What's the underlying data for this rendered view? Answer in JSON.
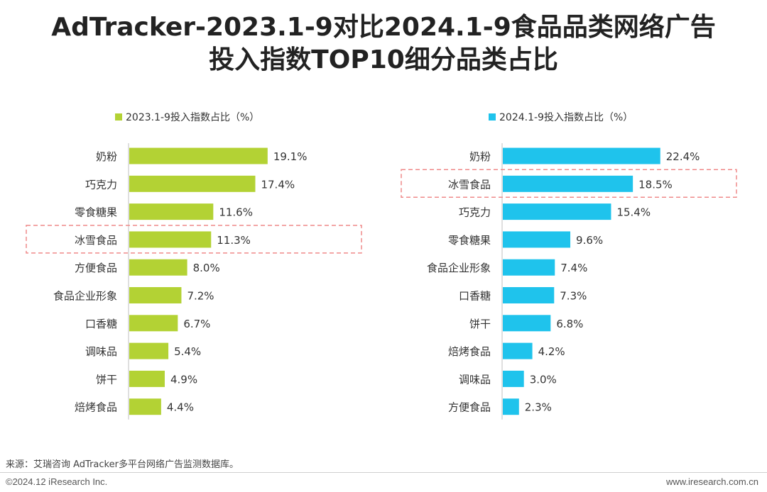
{
  "title": {
    "line1": "AdTracker-2023.1-9对比2024.1-9食品品类网络广告",
    "line2": "投入指数TOP10细分品类占比"
  },
  "chart_data": [
    {
      "type": "bar",
      "orientation": "horizontal",
      "color": "#b3d234",
      "legend": "2023.1-9投入指数占比（%）",
      "legend_position": "top",
      "categories": [
        "奶粉",
        "巧克力",
        "零食糖果",
        "冰雪食品",
        "方便食品",
        "食品企业形象",
        "口香糖",
        "调味品",
        "饼干",
        "焙烤食品"
      ],
      "values": [
        19.1,
        17.4,
        11.6,
        11.3,
        8.0,
        7.2,
        6.7,
        5.4,
        4.9,
        4.4
      ],
      "labels": [
        "19.1%",
        "17.4%",
        "11.6%",
        "11.3%",
        "8.0%",
        "7.2%",
        "6.7%",
        "5.4%",
        "4.9%",
        "4.4%"
      ],
      "highlight": "冰雪食品"
    },
    {
      "type": "bar",
      "orientation": "horizontal",
      "color": "#1fc3ec",
      "legend": "2024.1-9投入指数占比（%）",
      "legend_position": "top",
      "categories": [
        "奶粉",
        "冰雪食品",
        "巧克力",
        "零食糖果",
        "食品企业形象",
        "口香糖",
        "饼干",
        "焙烤食品",
        "调味品",
        "方便食品"
      ],
      "values": [
        22.4,
        18.5,
        15.4,
        9.6,
        7.4,
        7.3,
        6.8,
        4.2,
        3.0,
        2.3
      ],
      "labels": [
        "22.4%",
        "18.5%",
        "15.4%",
        "9.6%",
        "7.4%",
        "7.3%",
        "6.8%",
        "4.2%",
        "3.0%",
        "2.3%"
      ],
      "highlight": "冰雪食品"
    }
  ],
  "footer": {
    "source": "来源：艾瑞咨询 AdTracker多平台网络广告监测数据库。",
    "copyright": "©2024.12 iResearch Inc.",
    "url": "www.iresearch.com.cn"
  }
}
